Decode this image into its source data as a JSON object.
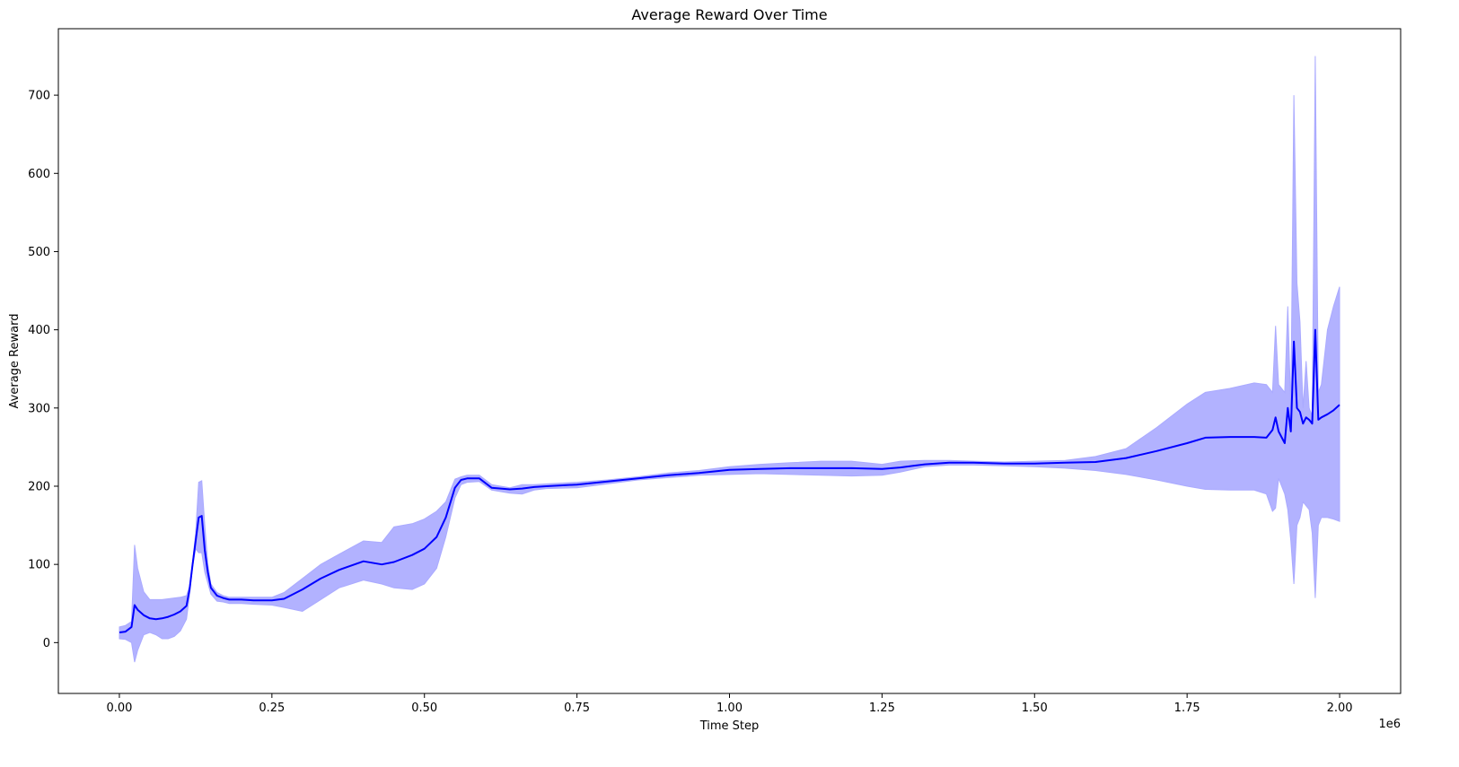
{
  "chart_data": {
    "type": "line",
    "title": "Average Reward Over Time",
    "xlabel": "Time Step",
    "ylabel": "Average Reward",
    "x_offset_label": "1e6",
    "xlim": [
      -0.1,
      2.1
    ],
    "ylim": [
      -65,
      785
    ],
    "grid": false,
    "x_ticks": [
      0.0,
      0.25,
      0.5,
      0.75,
      1.0,
      1.25,
      1.5,
      1.75,
      2.0
    ],
    "x_tick_labels": [
      "0.00",
      "0.25",
      "0.50",
      "0.75",
      "1.00",
      "1.25",
      "1.50",
      "1.75",
      "2.00"
    ],
    "y_ticks": [
      0,
      100,
      200,
      300,
      400,
      500,
      600,
      700
    ],
    "y_tick_labels": [
      "0",
      "100",
      "200",
      "300",
      "400",
      "500",
      "600",
      "700"
    ],
    "colors": {
      "line": "#0000ff",
      "band": "#aaaaff",
      "axis": "#000000"
    },
    "series": [
      {
        "x": [
          0.0,
          0.01,
          0.02,
          0.025,
          0.03,
          0.04,
          0.05,
          0.06,
          0.07,
          0.08,
          0.09,
          0.1,
          0.11,
          0.115,
          0.12,
          0.125,
          0.13,
          0.135,
          0.14,
          0.145,
          0.15,
          0.16,
          0.17,
          0.18,
          0.2,
          0.22,
          0.25,
          0.27,
          0.3,
          0.33,
          0.36,
          0.4,
          0.43,
          0.45,
          0.48,
          0.5,
          0.52,
          0.535,
          0.55,
          0.56,
          0.57,
          0.59,
          0.61,
          0.64,
          0.66,
          0.68,
          0.7,
          0.75,
          0.8,
          0.85,
          0.9,
          0.95,
          1.0,
          1.05,
          1.1,
          1.15,
          1.2,
          1.25,
          1.28,
          1.32,
          1.36,
          1.4,
          1.45,
          1.5,
          1.55,
          1.6,
          1.65,
          1.7,
          1.75,
          1.78,
          1.82,
          1.86,
          1.88,
          1.89,
          1.895,
          1.9,
          1.91,
          1.915,
          1.92,
          1.925,
          1.93,
          1.935,
          1.94,
          1.945,
          1.95,
          1.955,
          1.96,
          1.965,
          1.97,
          1.98,
          1.99,
          2.0
        ],
        "mean": [
          13,
          14,
          20,
          48,
          42,
          35,
          31,
          30,
          31,
          33,
          36,
          40,
          47,
          68,
          100,
          130,
          160,
          162,
          118,
          90,
          70,
          60,
          57,
          55,
          55,
          54,
          54,
          56,
          68,
          82,
          93,
          104,
          100,
          103,
          112,
          120,
          135,
          160,
          198,
          208,
          210,
          210,
          198,
          196,
          197,
          199,
          200,
          202,
          206,
          210,
          214,
          217,
          221,
          222,
          223,
          223,
          223,
          222,
          224,
          228,
          230,
          230,
          229,
          229,
          230,
          231,
          236,
          245,
          255,
          262,
          263,
          263,
          262,
          272,
          288,
          270,
          255,
          300,
          270,
          385,
          300,
          295,
          280,
          288,
          285,
          280,
          400,
          285,
          288,
          292,
          297,
          304
        ],
        "upper": [
          20,
          22,
          27,
          125,
          95,
          65,
          55,
          55,
          55,
          56,
          57,
          58,
          60,
          72,
          103,
          140,
          205,
          207,
          150,
          100,
          75,
          64,
          60,
          58,
          58,
          58,
          58,
          64,
          82,
          100,
          113,
          130,
          128,
          148,
          152,
          158,
          168,
          180,
          209,
          212,
          214,
          214,
          202,
          198,
          202,
          202,
          203,
          205,
          208,
          212,
          217,
          220,
          225,
          228,
          230,
          232,
          232,
          228,
          232,
          233,
          233,
          232,
          231,
          232,
          233,
          238,
          248,
          275,
          305,
          320,
          325,
          332,
          330,
          320,
          405,
          330,
          320,
          430,
          300,
          700,
          460,
          410,
          300,
          360,
          300,
          290,
          750,
          320,
          330,
          400,
          430,
          455
        ],
        "lower": [
          5,
          4,
          0,
          -25,
          -10,
          10,
          13,
          10,
          5,
          5,
          8,
          15,
          30,
          60,
          97,
          120,
          115,
          115,
          90,
          76,
          62,
          53,
          52,
          50,
          50,
          49,
          48,
          45,
          40,
          55,
          70,
          80,
          75,
          70,
          68,
          75,
          95,
          135,
          185,
          202,
          205,
          206,
          195,
          191,
          190,
          195,
          197,
          198,
          203,
          208,
          211,
          214,
          215,
          216,
          215,
          214,
          213,
          214,
          218,
          225,
          227,
          227,
          226,
          225,
          223,
          220,
          215,
          208,
          200,
          196,
          195,
          195,
          190,
          168,
          172,
          210,
          190,
          170,
          130,
          75,
          150,
          160,
          180,
          175,
          170,
          140,
          57,
          150,
          160,
          160,
          158,
          155
        ]
      }
    ]
  }
}
